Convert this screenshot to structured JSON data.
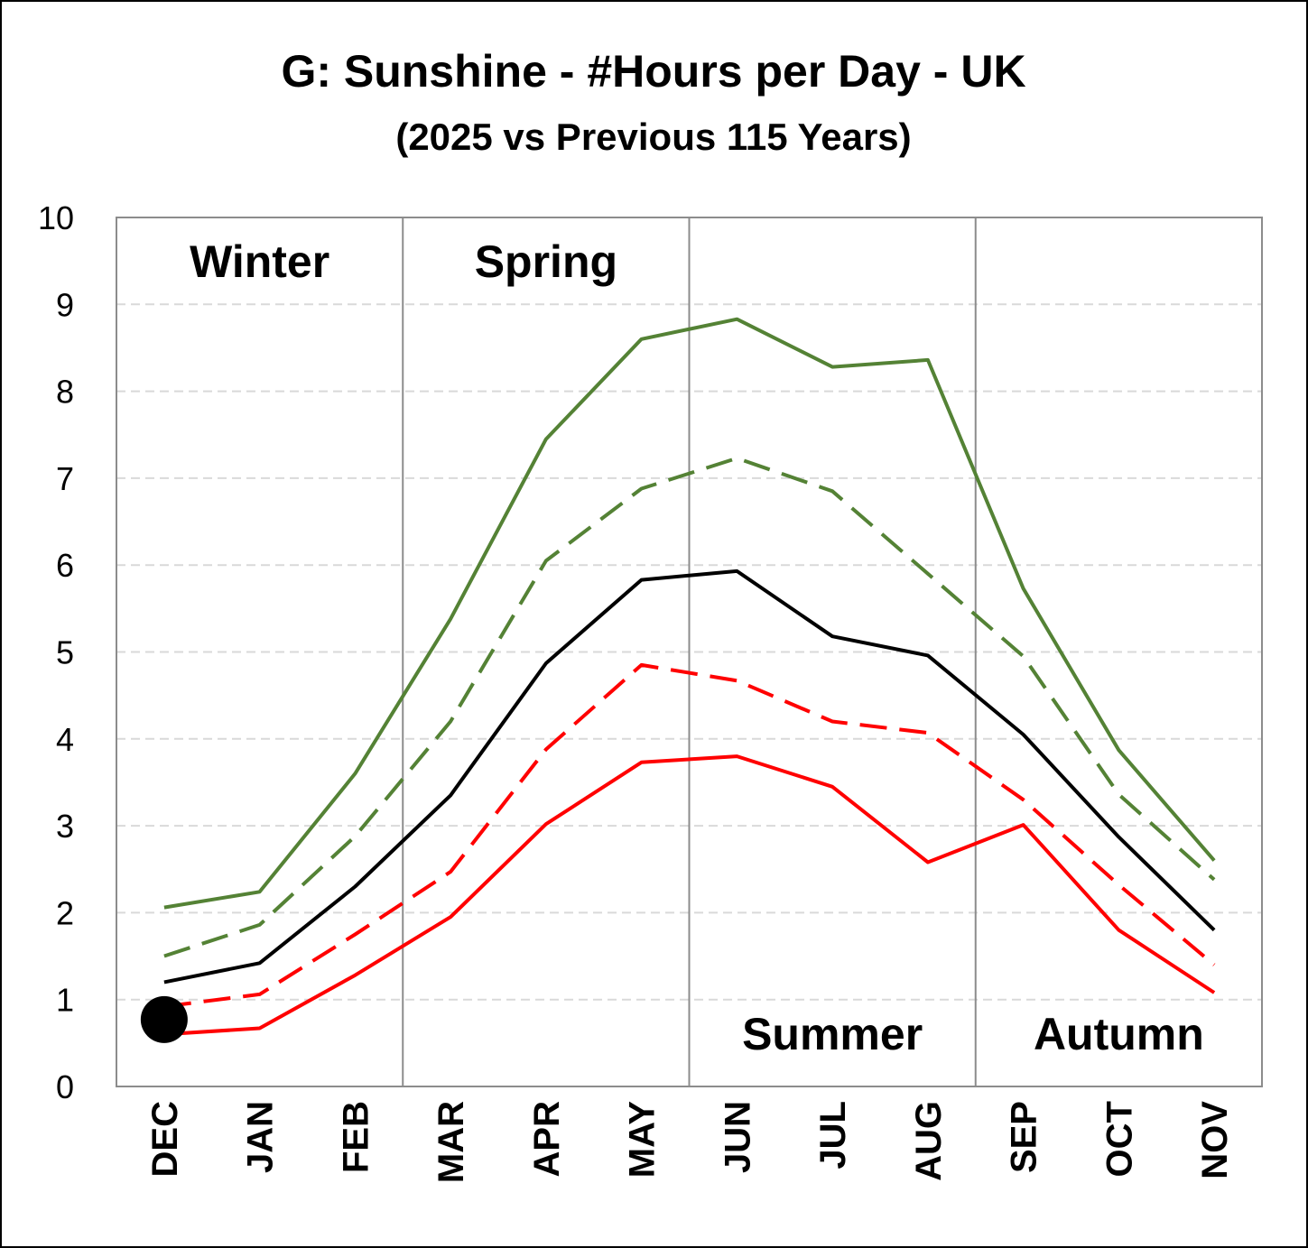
{
  "chart_data": {
    "type": "line",
    "title": "G: Sunshine - #Hours per Day - UK",
    "subtitle": "(2025 vs Previous 115 Years)",
    "xlabel": "",
    "ylabel": "",
    "categories": [
      "DEC",
      "JAN",
      "FEB",
      "MAR",
      "APR",
      "MAY",
      "JUN",
      "JUL",
      "AUG",
      "SEP",
      "OCT",
      "NOV"
    ],
    "ylim": [
      0,
      10
    ],
    "yticks": [
      "0",
      "1",
      "2",
      "3",
      "4",
      "5",
      "6",
      "7",
      "8",
      "9",
      "10"
    ],
    "grid": "horizontal dashed",
    "legend": "none",
    "seasons": [
      {
        "label": "Winter",
        "start": 0,
        "end": 2,
        "label_position": "top"
      },
      {
        "label": "Spring",
        "start": 3,
        "end": 5,
        "label_position": "top"
      },
      {
        "label": "Summer",
        "start": 6,
        "end": 8,
        "label_position": "bottom"
      },
      {
        "label": "Autumn",
        "start": 9,
        "end": 11,
        "label_position": "bottom"
      }
    ],
    "series": [
      {
        "color": "#548235",
        "dash": "solid",
        "values": [
          2.06,
          2.24,
          3.6,
          5.38,
          7.45,
          8.6,
          8.83,
          8.28,
          8.36,
          5.73,
          3.87,
          2.6
        ]
      },
      {
        "color": "#548235",
        "dash": "dashed",
        "values": [
          1.5,
          1.86,
          2.88,
          4.2,
          6.05,
          6.88,
          7.23,
          6.85,
          5.9,
          4.95,
          3.36,
          2.38
        ]
      },
      {
        "color": "#000000",
        "dash": "solid",
        "values": [
          1.2,
          1.42,
          2.3,
          3.35,
          4.87,
          5.83,
          5.93,
          5.18,
          4.96,
          4.05,
          2.87,
          1.8
        ]
      },
      {
        "color": "#ff0000",
        "dash": "dashed",
        "values": [
          0.92,
          1.06,
          1.75,
          2.47,
          3.88,
          4.85,
          4.67,
          4.2,
          4.07,
          3.3,
          2.32,
          1.4
        ]
      },
      {
        "color": "#ff0000",
        "dash": "solid",
        "values": [
          0.6,
          0.67,
          1.28,
          1.95,
          3.02,
          3.73,
          3.8,
          3.45,
          2.58,
          3.01,
          1.8,
          1.08
        ]
      }
    ],
    "highlight_points": [
      {
        "category": "DEC",
        "value": 0.77,
        "color": "#000000"
      }
    ]
  }
}
